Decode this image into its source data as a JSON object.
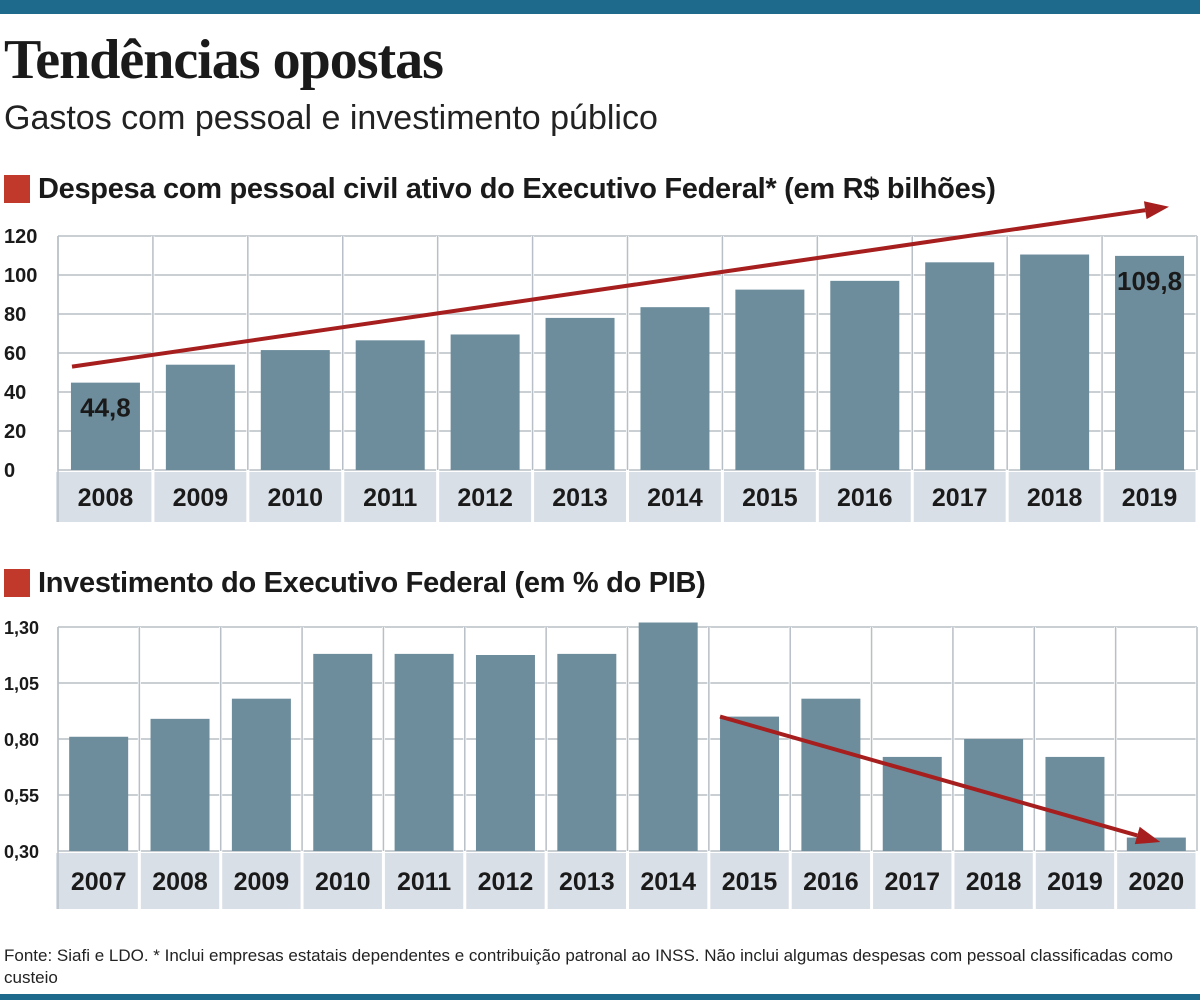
{
  "title": "Tendências opostas",
  "subtitle": "Gastos com pessoal e investimento público",
  "colors": {
    "bar": "#6d8d9c",
    "band": "#d9dfe6",
    "grid": "#b8bfc6",
    "arrow": "#a61e1e",
    "marker": "#c0392b",
    "top_bar": "#1d6a8c",
    "text": "#1a1a1a"
  },
  "chart_data": [
    {
      "type": "bar",
      "title": "Despesa com pessoal civil ativo do Executivo Federal* (em R$ bilhões)",
      "categories": [
        "2008",
        "2009",
        "2010",
        "2011",
        "2012",
        "2013",
        "2014",
        "2015",
        "2016",
        "2017",
        "2018",
        "2019"
      ],
      "values": [
        44.8,
        54,
        61.5,
        66.5,
        69.5,
        78,
        83.5,
        92.5,
        97,
        106.5,
        110.5,
        109.8
      ],
      "ylim": [
        0,
        120
      ],
      "yticks": [
        "0",
        "20",
        "40",
        "60",
        "80",
        "100",
        "120"
      ],
      "data_labels": [
        {
          "category": "2008",
          "text": "44,8"
        },
        {
          "category": "2019",
          "text": "109,8"
        }
      ],
      "trend_arrow": {
        "from": [
          "2008",
          53
        ],
        "to": [
          "2019",
          135
        ],
        "direction": "up"
      },
      "grid": true,
      "legend": "none"
    },
    {
      "type": "bar",
      "title": "Investimento do Executivo Federal (em % do PIB)",
      "categories": [
        "2007",
        "2008",
        "2009",
        "2010",
        "2011",
        "2012",
        "2013",
        "2014",
        "2015",
        "2016",
        "2017",
        "2018",
        "2019",
        "2020"
      ],
      "values": [
        0.81,
        0.89,
        0.98,
        1.18,
        1.18,
        1.175,
        1.18,
        1.32,
        0.9,
        0.98,
        0.72,
        0.8,
        0.72,
        0.36
      ],
      "ylim": [
        0.3,
        1.3
      ],
      "yticks": [
        "0,30",
        "0,55",
        "0,80",
        "1,05",
        "1,30"
      ],
      "trend_arrow": {
        "from": [
          "2015",
          0.9
        ],
        "to": [
          "2020",
          0.34
        ],
        "direction": "down"
      },
      "grid": true,
      "legend": "none"
    }
  ],
  "source": "Fonte: Siafi e LDO. * Inclui empresas estatais dependentes e contribuição patronal ao INSS. Não inclui algumas despesas com pessoal classificadas como custeio"
}
